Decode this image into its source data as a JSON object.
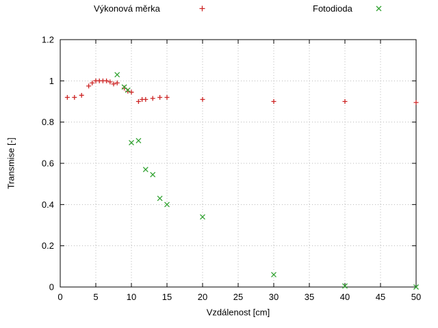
{
  "chart_data": {
    "type": "scatter",
    "title": "",
    "xlabel": "Vzdálenost [cm]",
    "ylabel": "Transmise [-]",
    "xlim": [
      0,
      50
    ],
    "ylim": [
      0,
      1.2
    ],
    "xticks": [
      0,
      5,
      10,
      15,
      20,
      25,
      30,
      35,
      40,
      45,
      50
    ],
    "xtick_labels": [
      "0",
      "5",
      "10",
      "15",
      "20",
      "25",
      "30",
      "35",
      "40",
      "45",
      "50"
    ],
    "yticks": [
      0,
      0.2,
      0.4,
      0.6,
      0.8,
      1.0,
      1.2
    ],
    "ytick_labels": [
      "0",
      "0.2",
      "0.4",
      "0.6",
      "0.8",
      "1",
      "1.2"
    ],
    "grid": true,
    "legend_position": "top",
    "series": [
      {
        "name": "Výkonová měrka",
        "marker": "plus",
        "color": "#cc2222",
        "points": [
          [
            1,
            0.92
          ],
          [
            2,
            0.92
          ],
          [
            3,
            0.93
          ],
          [
            4,
            0.975
          ],
          [
            4.5,
            0.99
          ],
          [
            5,
            1.0
          ],
          [
            5.5,
            1.0
          ],
          [
            6,
            1.0
          ],
          [
            6.5,
            1.0
          ],
          [
            7,
            0.995
          ],
          [
            7.5,
            0.985
          ],
          [
            8,
            0.99
          ],
          [
            9,
            0.965
          ],
          [
            9.5,
            0.95
          ],
          [
            10,
            0.945
          ],
          [
            11,
            0.9
          ],
          [
            11.5,
            0.91
          ],
          [
            12,
            0.91
          ],
          [
            13,
            0.915
          ],
          [
            14,
            0.92
          ],
          [
            15,
            0.92
          ],
          [
            20,
            0.91
          ],
          [
            30,
            0.9
          ],
          [
            40,
            0.9
          ],
          [
            50,
            0.895
          ]
        ]
      },
      {
        "name": "Fotodioda",
        "marker": "x",
        "color": "#2fa12f",
        "points": [
          [
            8,
            1.03
          ],
          [
            9,
            0.97
          ],
          [
            9.5,
            0.955
          ],
          [
            10,
            0.7
          ],
          [
            11,
            0.71
          ],
          [
            12,
            0.57
          ],
          [
            13,
            0.545
          ],
          [
            14,
            0.43
          ],
          [
            15,
            0.4
          ],
          [
            20,
            0.34
          ],
          [
            30,
            0.06
          ],
          [
            40,
            0.005
          ],
          [
            50,
            0.0
          ]
        ]
      }
    ]
  }
}
